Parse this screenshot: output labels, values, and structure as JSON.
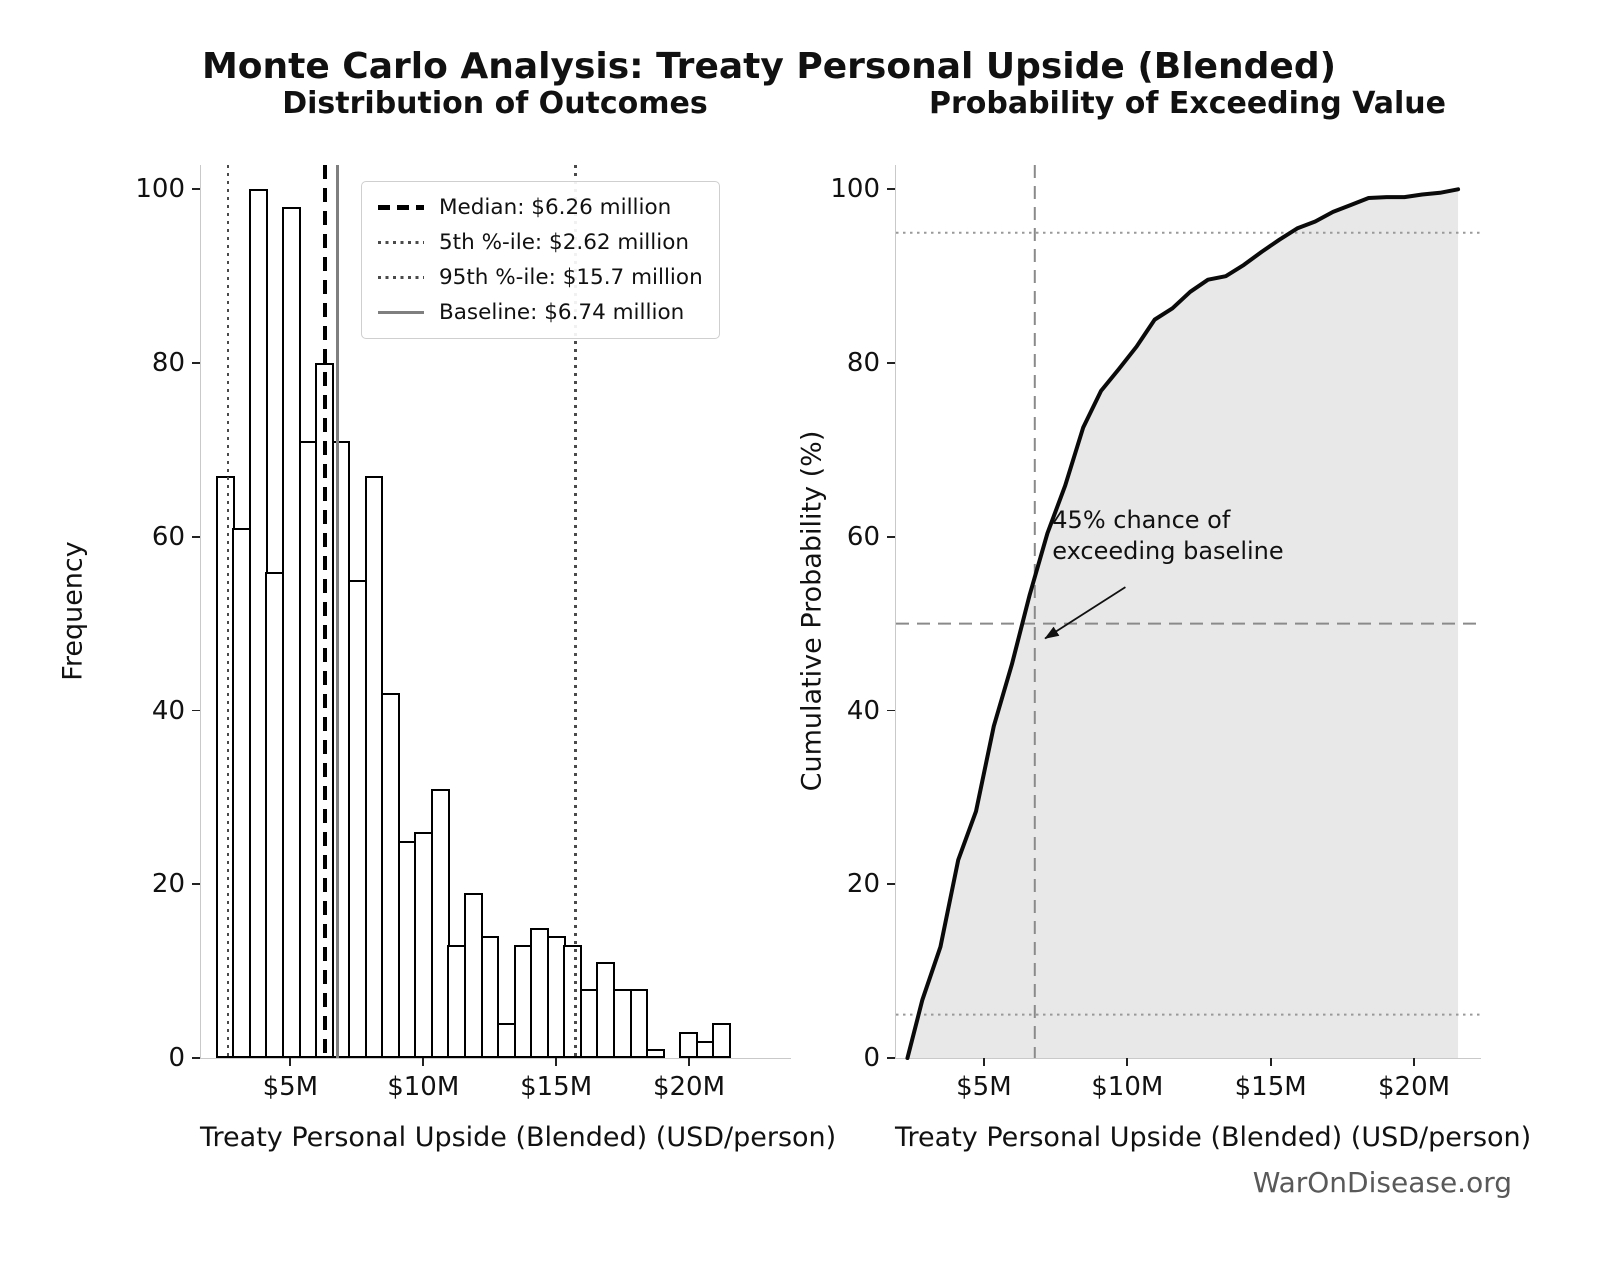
{
  "figure": {
    "suptitle": "Monte Carlo Analysis: Treaty Personal Upside (Blended)",
    "watermark": "WarOnDisease.org"
  },
  "colors": {
    "curve": "#0a0a0a",
    "cdf_fill": "#e8e8e8",
    "bar_fill": "#ffffff",
    "bar_edge": "#000000",
    "baseline_line": "#7f7f7f",
    "percentile_line": "#4a4a4a",
    "dashed_ref": "#8a8a8a",
    "dotted_ref": "#999999",
    "watermark": "#595959"
  },
  "chart_data": [
    {
      "type": "bar",
      "title": "Distribution of Outcomes",
      "xlabel": "Treaty Personal Upside (Blended) (USD/person)",
      "ylabel": "Frequency",
      "bin_start_musd": 2.2,
      "bin_width_musd": 0.6226,
      "values": [
        67,
        61,
        100,
        56,
        98,
        71,
        80,
        71,
        55,
        67,
        42,
        25,
        26,
        31,
        13,
        19,
        14,
        4,
        13,
        15,
        14,
        13,
        8,
        11,
        8,
        8,
        1,
        0,
        3,
        2,
        4
      ],
      "xlim": [
        1.6,
        23.8
      ],
      "ylim": [
        0,
        102.8
      ],
      "xticks": [
        {
          "v": 5,
          "label": "$5M"
        },
        {
          "v": 10,
          "label": "$10M"
        },
        {
          "v": 15,
          "label": "$15M"
        },
        {
          "v": 20,
          "label": "$20M"
        }
      ],
      "yticks": [
        {
          "v": 0,
          "label": "0"
        },
        {
          "v": 20,
          "label": "20"
        },
        {
          "v": 40,
          "label": "40"
        },
        {
          "v": 60,
          "label": "60"
        },
        {
          "v": 80,
          "label": "80"
        },
        {
          "v": 100,
          "label": "100"
        }
      ],
      "ref_lines": [
        {
          "name": "percentile-5",
          "x": 2.62,
          "style": "dotted-gray"
        },
        {
          "name": "median",
          "x": 6.26,
          "style": "dashed-black"
        },
        {
          "name": "baseline",
          "x": 6.74,
          "style": "solid-gray"
        },
        {
          "name": "percentile-95",
          "x": 15.7,
          "style": "dotted-gray"
        }
      ],
      "legend": [
        {
          "label": "Median: $6.26 million",
          "sample": "dashed-black"
        },
        {
          "label": "5th %-ile: $2.62 million",
          "sample": "dotted-gray"
        },
        {
          "label": "95th %-ile: $15.7 million",
          "sample": "dotted-gray"
        },
        {
          "label": "Baseline: $6.74 million",
          "sample": "solid-gray"
        }
      ]
    },
    {
      "type": "line",
      "title": "Probability of Exceeding Value",
      "xlabel": "Treaty Personal Upside (Blended) (USD/person)",
      "ylabel": "Cumulative Probability (%)",
      "x": [
        2.3,
        2.82,
        3.45,
        4.07,
        4.69,
        5.31,
        5.94,
        6.56,
        7.18,
        7.8,
        8.43,
        9.05,
        9.67,
        10.29,
        10.92,
        11.54,
        12.16,
        12.78,
        13.4,
        14.03,
        14.65,
        15.27,
        15.89,
        16.52,
        17.14,
        17.76,
        18.38,
        19.01,
        19.63,
        20.25,
        20.87,
        21.5
      ],
      "y": [
        0,
        6.7,
        12.8,
        22.8,
        28.4,
        38.2,
        45.3,
        53.3,
        60.4,
        65.9,
        72.6,
        76.8,
        79.3,
        81.9,
        85.0,
        86.3,
        88.2,
        89.6,
        90.0,
        91.3,
        92.8,
        94.2,
        95.5,
        96.3,
        97.4,
        98.2,
        99.0,
        99.1,
        99.1,
        99.4,
        99.6,
        100.0
      ],
      "xlim": [
        1.9,
        22.3
      ],
      "ylim": [
        0,
        102.8
      ],
      "xticks": [
        {
          "v": 5,
          "label": "$5M"
        },
        {
          "v": 10,
          "label": "$10M"
        },
        {
          "v": 15,
          "label": "$15M"
        },
        {
          "v": 20,
          "label": "$20M"
        }
      ],
      "yticks": [
        {
          "v": 0,
          "label": "0"
        },
        {
          "v": 20,
          "label": "20"
        },
        {
          "v": 40,
          "label": "40"
        },
        {
          "v": 60,
          "label": "60"
        },
        {
          "v": 80,
          "label": "80"
        },
        {
          "v": 100,
          "label": "100"
        }
      ],
      "hlines": [
        {
          "y": 50,
          "style": "dashed"
        },
        {
          "y": 95,
          "style": "dotted"
        },
        {
          "y": 5,
          "style": "dotted"
        }
      ],
      "vlines": [
        {
          "x": 6.74,
          "style": "dashed"
        }
      ],
      "annotation": {
        "lines": [
          "45% chance of",
          "exceeding baseline"
        ],
        "text_xy": [
          7.35,
          63.7
        ],
        "arrow_from": [
          9.9,
          54.2
        ],
        "arrow_to": [
          7.1,
          48.3
        ]
      }
    }
  ]
}
